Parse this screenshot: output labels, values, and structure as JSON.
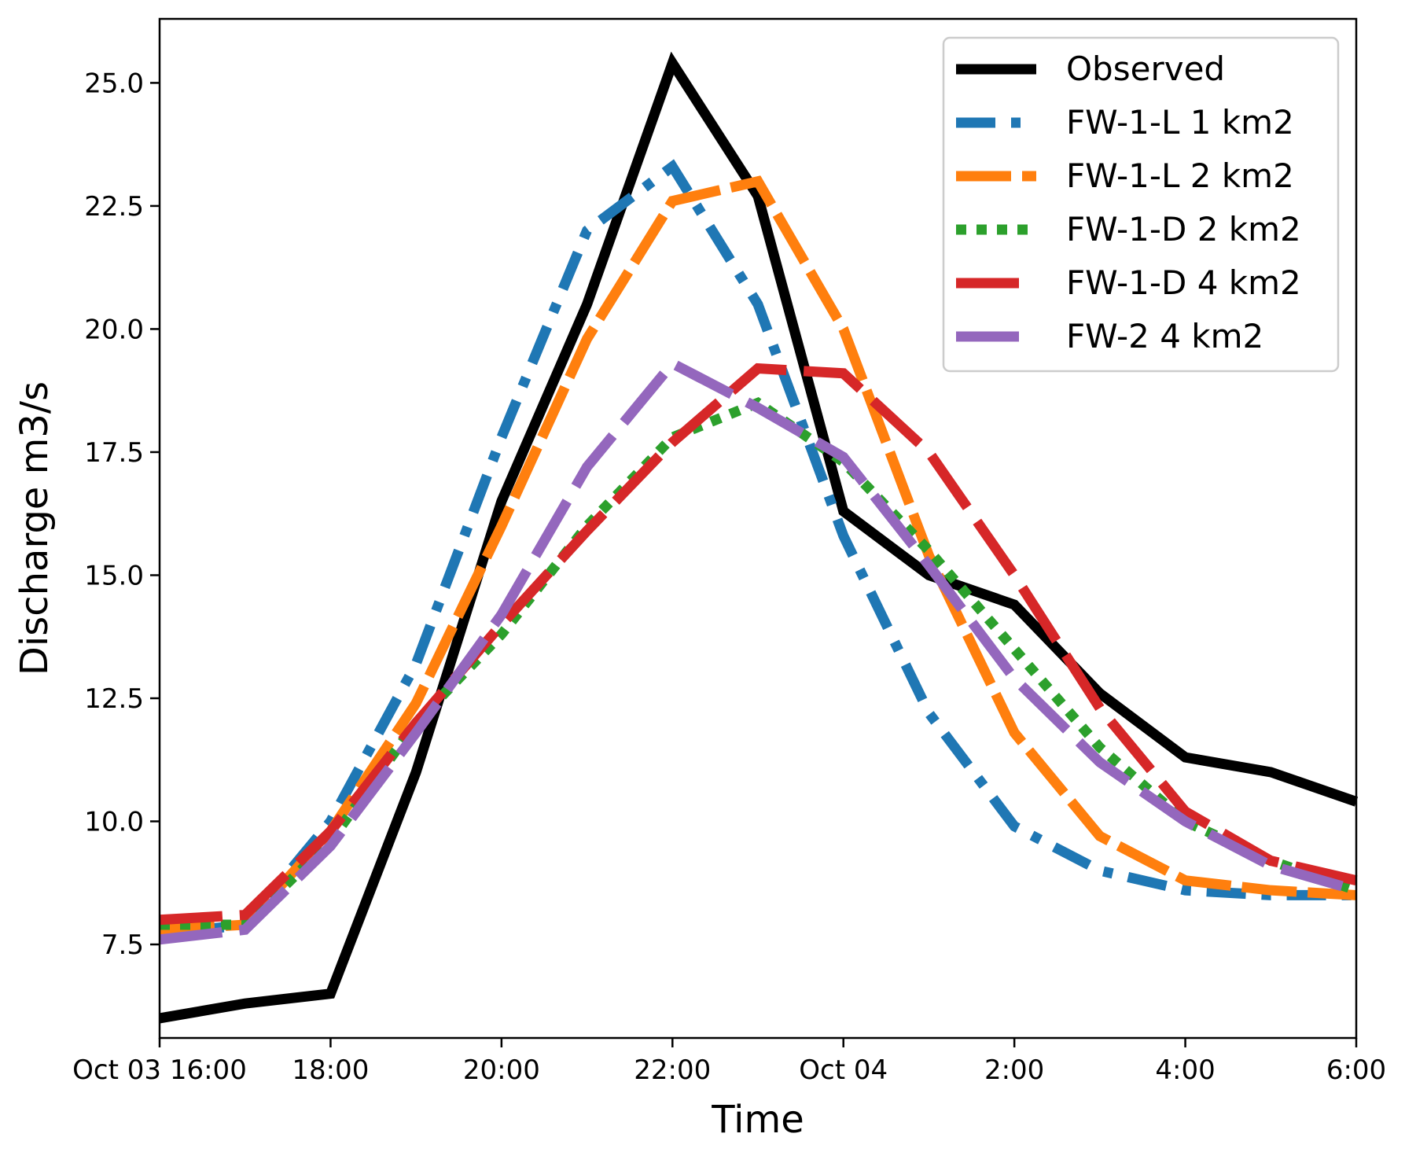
{
  "chart_data": {
    "type": "line",
    "title": "",
    "xlabel": "Time",
    "ylabel": "Discharge m3/s",
    "x": [
      0,
      1,
      2,
      3,
      4,
      5,
      6,
      7,
      8,
      9,
      10,
      11,
      12,
      13,
      14
    ],
    "x_unit": "hours since Oct 03 16:00",
    "xlim": [
      0,
      14
    ],
    "ylim": [
      5.6,
      26.3
    ],
    "xticks": [
      {
        "value": 0,
        "label": "Oct 03 16:00"
      },
      {
        "value": 2,
        "label": "18:00"
      },
      {
        "value": 4,
        "label": "20:00"
      },
      {
        "value": 6,
        "label": "22:00"
      },
      {
        "value": 8,
        "label": "Oct 04"
      },
      {
        "value": 10,
        "label": "2:00"
      },
      {
        "value": 12,
        "label": "4:00"
      },
      {
        "value": 14,
        "label": "6:00"
      }
    ],
    "yticks": [
      {
        "value": 7.5,
        "label": "7.5"
      },
      {
        "value": 10.0,
        "label": "10.0"
      },
      {
        "value": 12.5,
        "label": "12.5"
      },
      {
        "value": 15.0,
        "label": "15.0"
      },
      {
        "value": 17.5,
        "label": "17.5"
      },
      {
        "value": 20.0,
        "label": "20.0"
      },
      {
        "value": 22.5,
        "label": "22.5"
      },
      {
        "value": 25.0,
        "label": "25.0"
      }
    ],
    "grid": false,
    "legend_position": "top-right",
    "series": [
      {
        "name": "Observed",
        "color": "#000000",
        "style": "solid",
        "values": [
          6.0,
          6.3,
          6.5,
          11.0,
          16.5,
          20.5,
          25.4,
          22.7,
          16.3,
          15.0,
          14.4,
          12.6,
          11.3,
          11.0,
          10.4
        ]
      },
      {
        "name": "FW-1-L 1 km2",
        "color": "#1f77b4",
        "style": "dashdot",
        "values": [
          7.7,
          7.9,
          10.0,
          13.2,
          17.8,
          22.0,
          23.3,
          20.5,
          15.8,
          12.2,
          9.9,
          9.0,
          8.6,
          8.5,
          8.5
        ]
      },
      {
        "name": "FW-1-L 2 km2",
        "color": "#ff7f0e",
        "style": "dashed",
        "values": [
          7.8,
          7.9,
          9.8,
          12.4,
          16.0,
          19.8,
          22.6,
          23.0,
          20.0,
          15.4,
          11.8,
          9.7,
          8.8,
          8.6,
          8.5
        ]
      },
      {
        "name": "FW-1-D 2 km2",
        "color": "#2ca02c",
        "style": "dotted",
        "values": [
          7.9,
          7.9,
          9.6,
          12.0,
          13.8,
          16.0,
          17.8,
          18.5,
          17.3,
          15.5,
          13.5,
          11.5,
          10.0,
          9.2,
          8.6
        ]
      },
      {
        "name": "FW-1-D 4 km2",
        "color": "#d62728",
        "style": "longdash",
        "values": [
          8.0,
          8.1,
          9.8,
          12.0,
          14.0,
          15.9,
          17.7,
          19.2,
          19.1,
          17.5,
          15.0,
          12.3,
          10.2,
          9.2,
          8.8
        ]
      },
      {
        "name": "FW-2 4 km2",
        "color": "#9467bd",
        "style": "longdash",
        "values": [
          7.6,
          7.8,
          9.5,
          11.8,
          14.2,
          17.2,
          19.3,
          18.4,
          17.4,
          15.2,
          12.9,
          11.2,
          10.0,
          9.1,
          8.6
        ]
      }
    ]
  }
}
